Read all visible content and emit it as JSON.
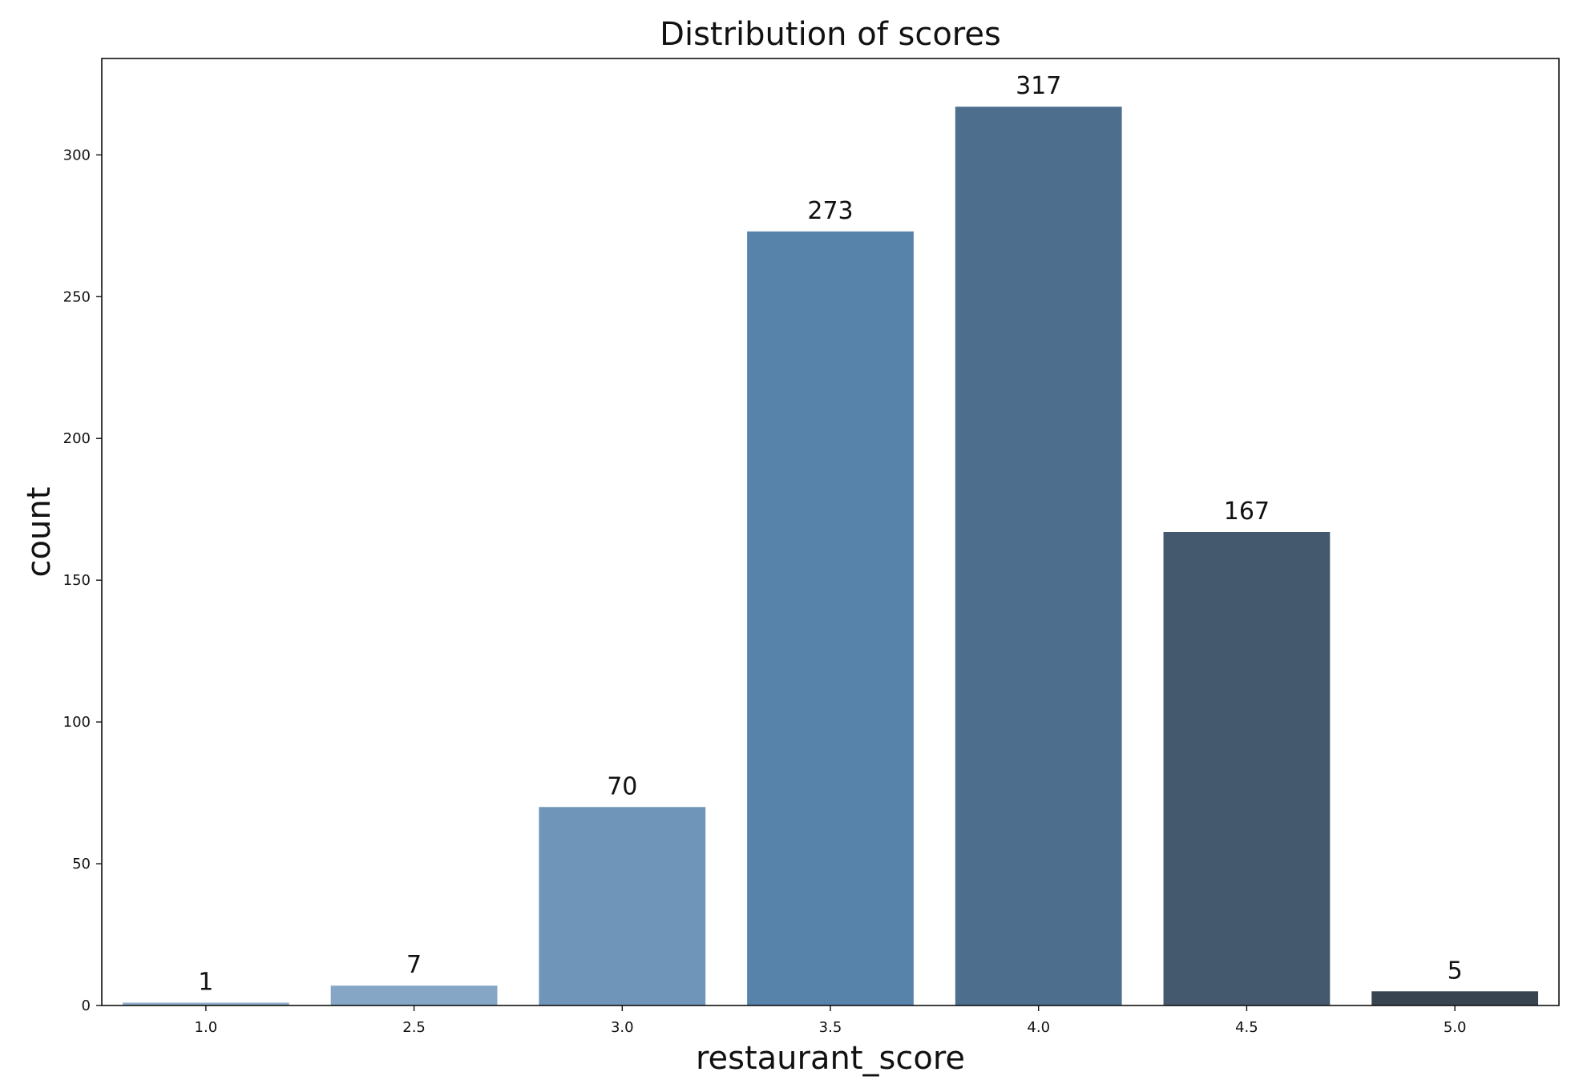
{
  "chart_data": {
    "type": "bar",
    "title": "Distribution of scores",
    "xlabel": "restaurant_score",
    "ylabel": "count",
    "categories": [
      "1.0",
      "2.5",
      "3.0",
      "3.5",
      "4.0",
      "4.5",
      "5.0"
    ],
    "values": [
      1,
      7,
      70,
      273,
      317,
      167,
      5
    ],
    "data_labels": [
      "1",
      "7",
      "70",
      "273",
      "317",
      "167",
      "5"
    ],
    "colors": [
      "#90AECB",
      "#86A6C6",
      "#6F95B8",
      "#5782AA",
      "#4E6E8E",
      "#45596E",
      "#38444F"
    ],
    "ylim": [
      0,
      334
    ],
    "yticks": [
      0,
      50,
      100,
      150,
      200,
      250,
      300
    ],
    "grid": false,
    "legend": "none"
  }
}
